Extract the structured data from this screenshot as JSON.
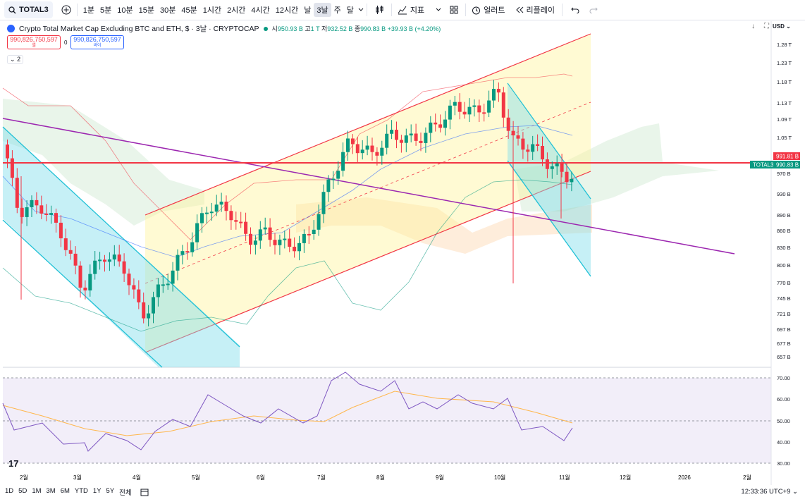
{
  "toolbar": {
    "symbol": "TOTAL3",
    "intervals": [
      "1분",
      "5분",
      "10분",
      "15분",
      "30분",
      "45분",
      "1시간",
      "2시간",
      "4시간",
      "12시간",
      "날",
      "3날",
      "주",
      "달"
    ],
    "active_interval": "3날",
    "indicators_label": "지표",
    "alert_label": "얼러트",
    "replay_label": "리플레이"
  },
  "legend": {
    "title": "Crypto Total Market Cap Excluding BTC and ETH, $ · 3날 · CRYPTOCAP",
    "open_k": "시",
    "open": "950.93 B",
    "high_k": "고",
    "high": "1 T",
    "low_k": "저",
    "low": "932.52 B",
    "close_k": "종",
    "close": "990.83 B",
    "change": "+39.93 B (+4.20%)"
  },
  "sell_box": {
    "price": "990,826,750,597",
    "label": "셀"
  },
  "spread": "0",
  "buy_box": {
    "price": "990,826,750,597",
    "label": "바이"
  },
  "indicator_toggle": "2",
  "currency": "USD",
  "price_axis": [
    "1.28 T",
    "1.23 T",
    "1.18 T",
    "1.13 T",
    "1.09 T",
    "1.05 T",
    "970 B",
    "930 B",
    "890 B",
    "860 B",
    "830 B",
    "800 B",
    "770 B",
    "745 B",
    "721 B",
    "697 B",
    "677 B",
    "657 B"
  ],
  "price_tags": {
    "red": "991.81 B",
    "symbol": "TOTAL3",
    "current": "990.83 B"
  },
  "rsi_axis": [
    "70.00",
    "60.00",
    "50.00",
    "40.00",
    "30.00"
  ],
  "time_axis": [
    "2월",
    "3월",
    "4월",
    "5월",
    "6월",
    "7월",
    "8월",
    "9월",
    "10월",
    "11월",
    "12월",
    "2026",
    "2월"
  ],
  "ranges": [
    "1D",
    "5D",
    "1M",
    "3M",
    "6M",
    "YTD",
    "1Y",
    "5Y",
    "전체"
  ],
  "clock": "12:33:36 UTC+9",
  "colors": {
    "up": "#089981",
    "down": "#f23645",
    "channel": "#f23645",
    "cyan": "#22c1d6",
    "purple": "#9c27b0",
    "rsi": "#7e57c2"
  }
}
